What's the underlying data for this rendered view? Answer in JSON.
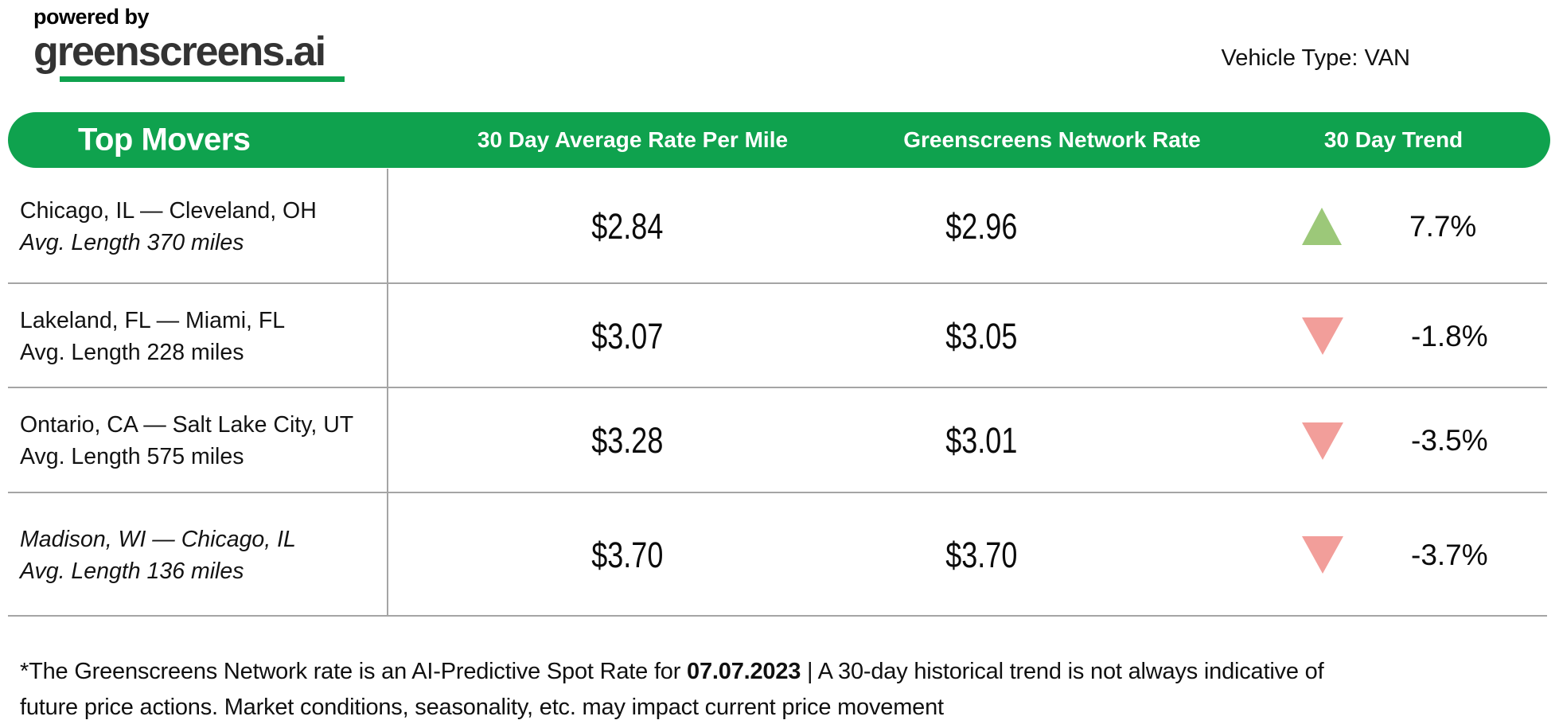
{
  "brand": {
    "powered_by": "powered by",
    "logo_text": "greenscreens.ai"
  },
  "vehicle_type_label": "Vehicle Type: VAN",
  "table": {
    "header": {
      "col1": "Top Movers",
      "col2": "30 Day Average Rate Per Mile",
      "col3": "Greenscreens Network Rate",
      "col4": "30 Day Trend"
    },
    "rows": [
      {
        "route": "Chicago, IL — Cleveland, OH",
        "avg_length": "Avg. Length 370 miles",
        "route_italic": false,
        "length_italic": true,
        "avg_rate": "$2.84",
        "network_rate": "$2.96",
        "trend_direction": "up",
        "trend_color": "#9cc879",
        "trend_value": "7.7%"
      },
      {
        "route": "Lakeland, FL — Miami, FL",
        "avg_length": "Avg. Length 228 miles",
        "route_italic": false,
        "length_italic": false,
        "avg_rate": "$3.07",
        "network_rate": "$3.05",
        "trend_direction": "down",
        "trend_color": "#f29e9a",
        "trend_value": "-1.8%"
      },
      {
        "route": "Ontario, CA — Salt Lake City, UT",
        "avg_length": "Avg. Length 575 miles",
        "route_italic": false,
        "length_italic": false,
        "avg_rate": "$3.28",
        "network_rate": "$3.01",
        "trend_direction": "down",
        "trend_color": "#f29e9a",
        "trend_value": "-3.5%"
      },
      {
        "route": "Madison, WI — Chicago, IL",
        "avg_length": "Avg. Length 136 miles",
        "route_italic": true,
        "length_italic": true,
        "avg_rate": "$3.70",
        "network_rate": "$3.70",
        "trend_direction": "down",
        "trend_color": "#f29e9a",
        "trend_value": "-3.7%"
      }
    ]
  },
  "footnote": {
    "line1_prefix": "*The Greenscreens Network rate is an AI-Predictive Spot Rate for ",
    "date": "07.07.2023",
    "line1_suffix": " | A 30-day historical trend is not always indicative of",
    "line2": "future price actions. Market conditions, seasonality, etc. may impact current price movement"
  },
  "colors": {
    "accent_green": "#0fa24e",
    "up_green": "#9cc879",
    "down_red": "#f29e9a",
    "grid_gray": "#a5a5a5",
    "text_dark": "#131313"
  },
  "chart_data": {
    "type": "table",
    "title": "Top Movers",
    "columns": [
      "Top Movers",
      "30 Day Average Rate Per Mile",
      "Greenscreens Network Rate",
      "30 Day Trend"
    ],
    "rows": [
      {
        "lane": "Chicago, IL — Cleveland, OH",
        "avg_length_miles": 370,
        "avg_rate_per_mile": 2.84,
        "network_rate": 2.96,
        "trend_pct": 7.7,
        "trend_direction": "up"
      },
      {
        "lane": "Lakeland, FL — Miami, FL",
        "avg_length_miles": 228,
        "avg_rate_per_mile": 3.07,
        "network_rate": 3.05,
        "trend_pct": -1.8,
        "trend_direction": "down"
      },
      {
        "lane": "Ontario, CA — Salt Lake City, UT",
        "avg_length_miles": 575,
        "avg_rate_per_mile": 3.28,
        "network_rate": 3.01,
        "trend_pct": -3.5,
        "trend_direction": "down"
      },
      {
        "lane": "Madison, WI — Chicago, IL",
        "avg_length_miles": 136,
        "avg_rate_per_mile": 3.7,
        "network_rate": 3.7,
        "trend_pct": -3.7,
        "trend_direction": "down"
      }
    ]
  }
}
